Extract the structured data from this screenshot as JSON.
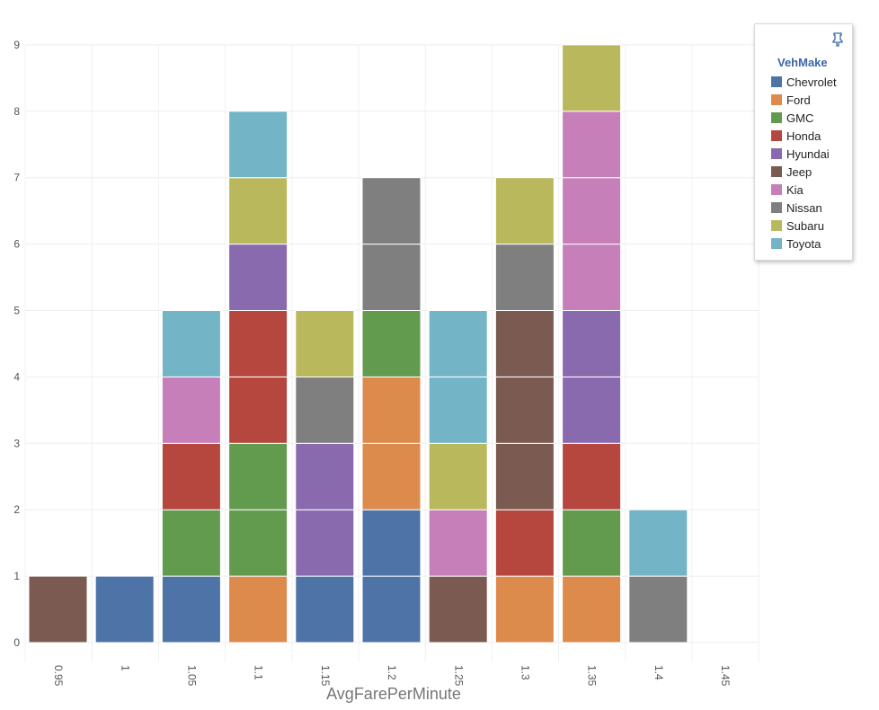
{
  "chart_data": {
    "type": "bar",
    "stacked": true,
    "xlabel": "AvgFarePerMinute",
    "ylabel": "",
    "ylim": [
      0,
      9
    ],
    "yticks": [
      "0",
      "1",
      "2",
      "3",
      "4",
      "5",
      "6",
      "7",
      "8",
      "9"
    ],
    "categories": [
      "0.95",
      "1",
      "1.05",
      "1.1",
      "1.15",
      "1.2",
      "1.25",
      "1.3",
      "1.35",
      "1.4",
      "1.45"
    ],
    "grid": true,
    "legend_position": "top-right",
    "series": [
      {
        "name": "Chevrolet",
        "color": "#4e74a7",
        "values": [
          0,
          1,
          1,
          0,
          1,
          2,
          0,
          0,
          0,
          0,
          0
        ]
      },
      {
        "name": "Ford",
        "color": "#dd8a4d",
        "values": [
          0,
          0,
          0,
          1,
          0,
          2,
          0,
          1,
          1,
          0,
          0
        ]
      },
      {
        "name": "GMC",
        "color": "#629b4e",
        "values": [
          0,
          0,
          1,
          2,
          0,
          1,
          0,
          0,
          1,
          0,
          0
        ]
      },
      {
        "name": "Honda",
        "color": "#b5473e",
        "values": [
          0,
          0,
          1,
          2,
          0,
          0,
          0,
          1,
          1,
          0,
          0
        ]
      },
      {
        "name": "Hyundai",
        "color": "#8a6aaf",
        "values": [
          0,
          0,
          0,
          1,
          2,
          0,
          0,
          0,
          2,
          0,
          0
        ]
      },
      {
        "name": "Jeep",
        "color": "#7b5b51",
        "values": [
          1,
          0,
          0,
          0,
          0,
          0,
          1,
          3,
          0,
          0,
          0
        ]
      },
      {
        "name": "Kia",
        "color": "#c77fb9",
        "values": [
          0,
          0,
          1,
          0,
          0,
          0,
          1,
          0,
          3,
          0,
          0
        ]
      },
      {
        "name": "Nissan",
        "color": "#7f7f7f",
        "values": [
          0,
          0,
          0,
          0,
          1,
          2,
          0,
          1,
          0,
          1,
          0
        ]
      },
      {
        "name": "Subaru",
        "color": "#bab85c",
        "values": [
          0,
          0,
          0,
          1,
          1,
          0,
          1,
          1,
          1,
          0,
          0
        ]
      },
      {
        "name": "Toyota",
        "color": "#73b5c6",
        "values": [
          0,
          0,
          1,
          1,
          0,
          0,
          2,
          0,
          0,
          1,
          0
        ]
      }
    ]
  },
  "legend": {
    "title": "VehMake",
    "icon": "pin-icon"
  }
}
